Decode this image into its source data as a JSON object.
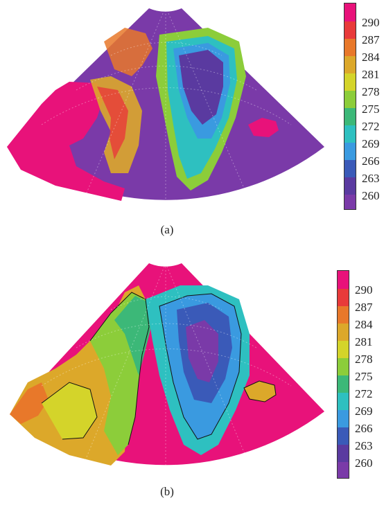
{
  "panels": [
    {
      "id": "a",
      "caption": "(a)",
      "colorbar": {
        "ticks": [
          "290",
          "287",
          "284",
          "281",
          "278",
          "275",
          "272",
          "269",
          "266",
          "263",
          "260"
        ]
      }
    },
    {
      "id": "b",
      "caption": "(b)",
      "colorbar": {
        "ticks": [
          "290",
          "287",
          "284",
          "281",
          "278",
          "275",
          "272",
          "269",
          "266",
          "263",
          "260"
        ]
      }
    }
  ],
  "colors": {
    "scale_top_to_bottom": [
      "#e8127a",
      "#e83a3a",
      "#e8782a",
      "#dca82a",
      "#d4d42a",
      "#8ccd3a",
      "#3cb878",
      "#2ec0c0",
      "#3a9ae0",
      "#3a5ab8",
      "#5a3aa0",
      "#7a3aa8"
    ],
    "ocean_a": "#7a3aa8",
    "ocean_b": "#e8127a",
    "land_fill": "#e8127a"
  }
}
